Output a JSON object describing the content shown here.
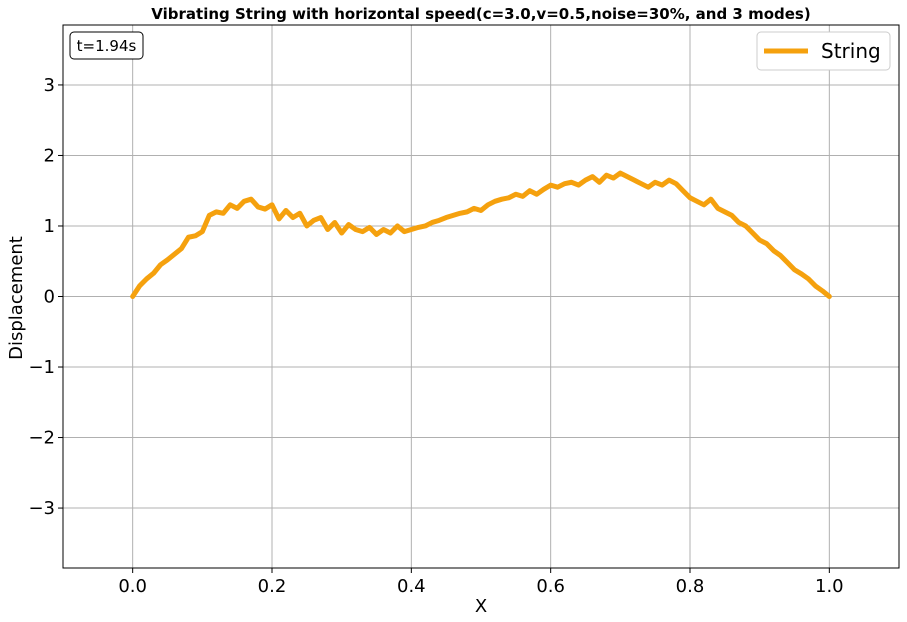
{
  "chart_data": {
    "type": "line",
    "title": "Vibrating String with horizontal speed(c=3.0,v=0.5,noise=30%, and 3 modes)",
    "xlabel": "X",
    "ylabel": "Displacement",
    "xlim": [
      -0.1,
      1.1
    ],
    "ylim": [
      -3.85,
      3.85
    ],
    "xticks": [
      0.0,
      0.2,
      0.4,
      0.6,
      0.8,
      1.0
    ],
    "xtick_labels": [
      "0.0",
      "0.2",
      "0.4",
      "0.6",
      "0.8",
      "1.0"
    ],
    "yticks": [
      3,
      2,
      1,
      0,
      -1,
      -2,
      -3
    ],
    "ytick_labels": [
      "3",
      "2",
      "1",
      "0",
      "−1",
      "−2",
      "−3"
    ],
    "grid": true,
    "legend_position": "upper right",
    "annotation": "t=1.94s",
    "series": [
      {
        "name": "String",
        "color": "#f5a10e",
        "x": [
          0.0,
          0.01,
          0.02,
          0.03,
          0.04,
          0.05,
          0.06,
          0.07,
          0.08,
          0.09,
          0.1,
          0.11,
          0.12,
          0.13,
          0.14,
          0.15,
          0.16,
          0.17,
          0.18,
          0.19,
          0.2,
          0.21,
          0.22,
          0.23,
          0.24,
          0.25,
          0.26,
          0.27,
          0.28,
          0.29,
          0.3,
          0.31,
          0.32,
          0.33,
          0.34,
          0.35,
          0.36,
          0.37,
          0.38,
          0.39,
          0.4,
          0.41,
          0.42,
          0.43,
          0.44,
          0.45,
          0.46,
          0.47,
          0.48,
          0.49,
          0.5,
          0.51,
          0.52,
          0.53,
          0.54,
          0.55,
          0.56,
          0.57,
          0.58,
          0.59,
          0.6,
          0.61,
          0.62,
          0.63,
          0.64,
          0.65,
          0.66,
          0.67,
          0.68,
          0.69,
          0.7,
          0.71,
          0.72,
          0.73,
          0.74,
          0.75,
          0.76,
          0.77,
          0.78,
          0.79,
          0.8,
          0.81,
          0.82,
          0.83,
          0.84,
          0.85,
          0.86,
          0.87,
          0.88,
          0.89,
          0.9,
          0.91,
          0.92,
          0.93,
          0.94,
          0.95,
          0.96,
          0.97,
          0.98,
          0.99,
          1.0
        ],
        "y": [
          0.0,
          0.15,
          0.25,
          0.33,
          0.45,
          0.52,
          0.6,
          0.68,
          0.84,
          0.86,
          0.92,
          1.15,
          1.2,
          1.18,
          1.3,
          1.25,
          1.35,
          1.38,
          1.27,
          1.24,
          1.3,
          1.1,
          1.22,
          1.12,
          1.18,
          1.0,
          1.08,
          1.12,
          0.95,
          1.05,
          0.9,
          1.02,
          0.95,
          0.92,
          0.98,
          0.88,
          0.95,
          0.9,
          1.0,
          0.92,
          0.95,
          0.98,
          1.0,
          1.05,
          1.08,
          1.12,
          1.15,
          1.18,
          1.2,
          1.25,
          1.22,
          1.3,
          1.35,
          1.38,
          1.4,
          1.45,
          1.42,
          1.5,
          1.45,
          1.52,
          1.58,
          1.55,
          1.6,
          1.62,
          1.58,
          1.65,
          1.7,
          1.62,
          1.72,
          1.68,
          1.75,
          1.7,
          1.65,
          1.6,
          1.55,
          1.62,
          1.58,
          1.65,
          1.6,
          1.5,
          1.4,
          1.35,
          1.3,
          1.38,
          1.25,
          1.2,
          1.15,
          1.05,
          1.0,
          0.9,
          0.8,
          0.75,
          0.65,
          0.58,
          0.48,
          0.38,
          0.32,
          0.25,
          0.15,
          0.08,
          0.0
        ]
      }
    ]
  }
}
